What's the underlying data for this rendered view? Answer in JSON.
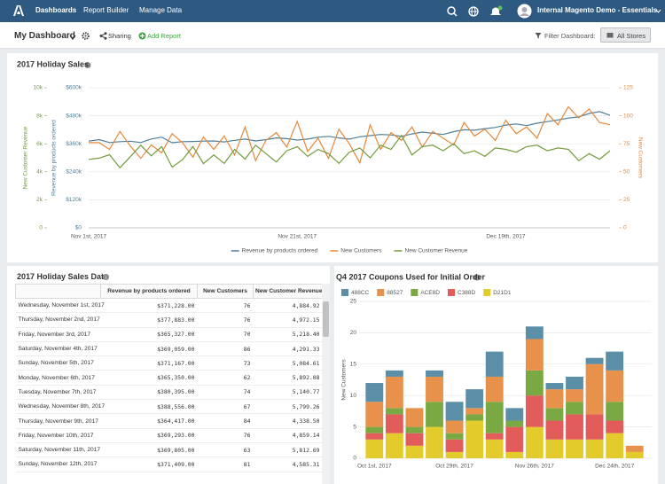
{
  "nav": {
    "links": [
      "Dashboards",
      "Report Builder",
      "Manage Data"
    ],
    "account": "Internal Magento Demo - Essentials"
  },
  "toolbar": {
    "title": "My Dashboard",
    "sharing": "Sharing",
    "add_report": "Add Report",
    "filter_label": "Filter Dashboard:",
    "filter_button": "All Stores"
  },
  "chart_data": [
    {
      "type": "line",
      "title": "2017 Holiday Sales",
      "categories": [
        "Nov 1st, 2017",
        null,
        null,
        null,
        null,
        null,
        null,
        null,
        null,
        null,
        null,
        null,
        null,
        null,
        null,
        null,
        null,
        null,
        null,
        null,
        "Nov 21st, 2017",
        null,
        null,
        null,
        null,
        null,
        null,
        null,
        null,
        null,
        null,
        null,
        null,
        null,
        null,
        null,
        null,
        null,
        null,
        null,
        "Dec 19th, 2017",
        null,
        null,
        null,
        null,
        null,
        null,
        null,
        null,
        null,
        null
      ],
      "ylabel": "Revenue by products ordered",
      "ylim": [
        0,
        600000
      ],
      "yticks": [
        {
          "value": 0,
          "label": "$0"
        },
        {
          "value": 120000,
          "label": "$120k"
        },
        {
          "value": 240000,
          "label": "$240k"
        },
        {
          "value": 360000,
          "label": "$360k"
        },
        {
          "value": 480000,
          "label": "$480k"
        },
        {
          "value": 600000,
          "label": "$600k"
        }
      ],
      "y2label": "New Customers",
      "y2lim": [
        0,
        125
      ],
      "y2ticks": [
        0,
        25,
        50,
        75,
        100,
        125
      ],
      "y3label": "New Customer Revenue",
      "y3lim": [
        0,
        10000
      ],
      "y3ticks": [
        0,
        {
          "value": 2000,
          "label": "2k"
        },
        {
          "value": 4000,
          "label": "4k"
        },
        {
          "value": 6000,
          "label": "6k"
        },
        {
          "value": 8000,
          "label": "8k"
        },
        {
          "value": 10000,
          "label": "10k"
        }
      ],
      "grid": true,
      "legend": "bottom",
      "series": [
        {
          "name": "Revenue by products ordered",
          "color": "#4e7f9a",
          "values": [
            371228,
            377883,
            365327,
            369059,
            371167,
            365350,
            380395,
            388556,
            364417,
            369293,
            369805,
            371409,
            372000,
            368000,
            375000,
            380000,
            372000,
            378000,
            385000,
            382000,
            376000,
            380000,
            388000,
            392000,
            385000,
            380000,
            390000,
            395000,
            400000,
            398000,
            392000,
            402000,
            410000,
            405000,
            400000,
            412000,
            420000,
            418000,
            425000,
            430000,
            440000,
            445000,
            438000,
            448000,
            455000,
            462000,
            470000,
            475000,
            490000,
            498000,
            482000
          ]
        },
        {
          "name": "New Customers",
          "color": "#e3893b",
          "axis": "y2",
          "values": [
            76,
            76,
            70,
            86,
            73,
            62,
            74,
            67,
            84,
            76,
            63,
            81,
            70,
            82,
            65,
            90,
            60,
            78,
            85,
            72,
            95,
            68,
            80,
            62,
            88,
            75,
            58,
            92,
            70,
            85,
            78,
            90,
            72,
            86,
            80,
            74,
            94,
            82,
            88,
            78,
            96,
            84,
            90,
            80,
            102,
            92,
            108,
            98,
            106,
            94,
            92
          ]
        },
        {
          "name": "New Customer Revenue",
          "color": "#739b3a",
          "axis": "y3",
          "values": [
            4884.92,
            4972.15,
            5218.4,
            4291.33,
            5084.61,
            5892.08,
            5140.77,
            5799.26,
            4338.5,
            4859.14,
            5812.69,
            4585.31,
            5200,
            4600,
            5600,
            4900,
            5900,
            5300,
            4700,
            5500,
            5800,
            5100,
            5600,
            5300,
            4600,
            5400,
            5700,
            5000,
            5900,
            5600,
            6600,
            5200,
            5800,
            5900,
            5500,
            6000,
            5300,
            5500,
            5100,
            5700,
            5600,
            5400,
            5800,
            5900,
            5500,
            5700,
            5600,
            4800,
            5300,
            4900,
            5500
          ]
        }
      ]
    },
    {
      "type": "stacked_bar",
      "title": "Q4 2017 Coupons Used for Initial Order",
      "categories": [
        "Oct 1st, 2017",
        null,
        null,
        null,
        "Oct 29th, 2017",
        null,
        null,
        null,
        "Nov 26th, 2017",
        null,
        null,
        null,
        "Dec 24th, 2017",
        null
      ],
      "ylabel": "New Customers",
      "ylim": [
        0,
        25
      ],
      "yticks": [
        0,
        5,
        10,
        15,
        20,
        25
      ],
      "grid": true,
      "legend": "top",
      "series": [
        {
          "name": "488CC",
          "color": "#5b8fa8",
          "values": [
            3,
            1,
            0,
            1,
            3,
            3,
            4,
            2,
            2,
            1,
            2,
            1,
            3,
            0
          ]
        },
        {
          "name": "88527",
          "color": "#e8914a",
          "values": [
            4,
            5,
            3,
            4,
            2,
            1,
            4,
            0,
            5,
            3,
            2,
            8,
            5,
            1
          ]
        },
        {
          "name": "ACE8D",
          "color": "#7aa843",
          "values": [
            1,
            1,
            1,
            4,
            1,
            1,
            5,
            1,
            4,
            2,
            2,
            0,
            3,
            0
          ]
        },
        {
          "name": "C388D",
          "color": "#e25c5c",
          "values": [
            1,
            3,
            2,
            0,
            2,
            0,
            1,
            4,
            5,
            3,
            4,
            4,
            2,
            0
          ]
        },
        {
          "name": "D21D1",
          "color": "#e3cb2c",
          "values": [
            3,
            4,
            2,
            5,
            1,
            6,
            3,
            1,
            5,
            3,
            3,
            3,
            4,
            1
          ]
        }
      ]
    }
  ],
  "table": {
    "title": "2017 Holiday Sales Data",
    "columns": [
      "Revenue by products ordered",
      "New Customers",
      "New Customer Revenue"
    ],
    "rows": [
      [
        "Wednesday, November 1st, 2017",
        "$371,228.00",
        "76",
        "4,884.92"
      ],
      [
        "Thursday, November 2nd, 2017",
        "$377,883.00",
        "76",
        "4,972.15"
      ],
      [
        "Friday, November 3rd, 2017",
        "$365,327.00",
        "70",
        "5,218.40"
      ],
      [
        "Saturday, November 4th, 2017",
        "$369,059.00",
        "86",
        "4,291.33"
      ],
      [
        "Sunday, November 5th, 2017",
        "$371,167.00",
        "73",
        "5,084.61"
      ],
      [
        "Monday, November 6th, 2017",
        "$365,350.00",
        "62",
        "5,892.08"
      ],
      [
        "Tuesday, November 7th, 2017",
        "$380,395.00",
        "74",
        "5,140.77"
      ],
      [
        "Wednesday, November 8th, 2017",
        "$388,556.00",
        "67",
        "5,799.26"
      ],
      [
        "Thursday, November 9th, 2017",
        "$364,417.00",
        "84",
        "4,338.50"
      ],
      [
        "Friday, November 10th, 2017",
        "$369,293.00",
        "76",
        "4,859.14"
      ],
      [
        "Saturday, November 11th, 2017",
        "$369,805.00",
        "63",
        "5,812.69"
      ],
      [
        "Sunday, November 12th, 2017",
        "$371,409.00",
        "81",
        "4,585.31"
      ]
    ]
  }
}
